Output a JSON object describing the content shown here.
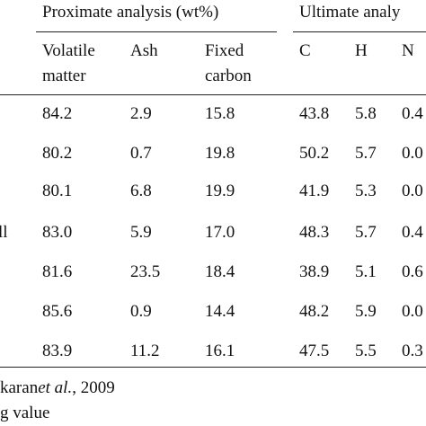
{
  "table": {
    "groups": [
      "Proximate analysis (wt%)",
      "Ultimate analy"
    ],
    "columns": [
      [
        "Volatile",
        "matter"
      ],
      [
        "Ash"
      ],
      [
        "Fixed",
        "carbon"
      ],
      [
        "C"
      ],
      [
        "H"
      ],
      [
        "N"
      ]
    ],
    "row_labels": [
      null,
      null,
      null,
      "ll",
      null,
      null,
      null
    ],
    "rows": [
      [
        "84.2",
        "2.9",
        "15.8",
        "43.8",
        "5.8",
        "0.4"
      ],
      [
        "80.2",
        "0.7",
        "19.8",
        "50.2",
        "5.7",
        "0.0"
      ],
      [
        "80.1",
        "6.8",
        "19.9",
        "41.9",
        "5.3",
        "0.0"
      ],
      [
        "83.0",
        "5.9",
        "17.0",
        "48.3",
        "5.7",
        "0.4"
      ],
      [
        "81.6",
        "23.5",
        "18.4",
        "38.9",
        "5.1",
        "0.6"
      ],
      [
        "85.6",
        "0.9",
        "14.4",
        "48.2",
        "5.9",
        "0.0"
      ],
      [
        "83.9",
        "11.2",
        "16.1",
        "47.5",
        "5.5",
        "0.3"
      ]
    ]
  },
  "notes": [
    [
      "karan ",
      "et al.",
      ", 2009"
    ],
    [
      "g value"
    ]
  ]
}
